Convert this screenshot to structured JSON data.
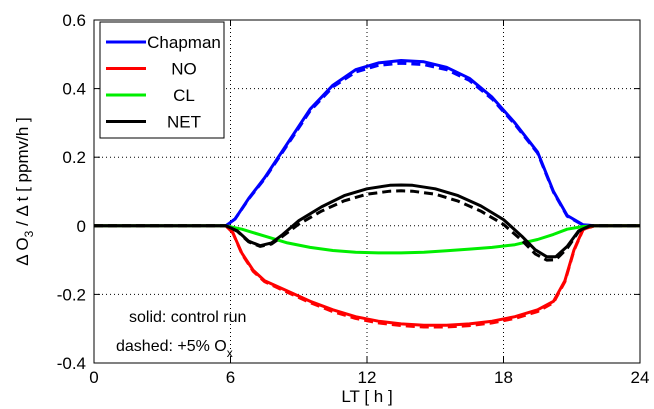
{
  "chart_data": {
    "type": "line",
    "xlabel": "LT [ h ]",
    "ylabel": {
      "delta1": "Δ",
      "o": "O",
      "sub": "3",
      "rest": " / Δ t   [ ppmv/h ]"
    },
    "xlim": [
      0,
      24
    ],
    "ylim": [
      -0.4,
      0.6
    ],
    "xticks": [
      "0",
      "6",
      "12",
      "18",
      "24"
    ],
    "yticks": [
      "-0.4",
      "-0.2",
      "0",
      "0.2",
      "0.4",
      "0.6"
    ],
    "grid": true,
    "legend_position": "top-left",
    "series": [
      {
        "name": "Chapman",
        "color": "#0000ff",
        "solid": [
          [
            0,
            0
          ],
          [
            5.8,
            0
          ],
          [
            6.2,
            0.02
          ],
          [
            6.8,
            0.08
          ],
          [
            7.5,
            0.14
          ],
          [
            8.5,
            0.24
          ],
          [
            9.5,
            0.34
          ],
          [
            10.5,
            0.41
          ],
          [
            11.5,
            0.455
          ],
          [
            12.5,
            0.475
          ],
          [
            13.5,
            0.482
          ],
          [
            14.5,
            0.478
          ],
          [
            15.5,
            0.462
          ],
          [
            16.5,
            0.43
          ],
          [
            17.5,
            0.375
          ],
          [
            18.5,
            0.3
          ],
          [
            19.5,
            0.215
          ],
          [
            20.2,
            0.1
          ],
          [
            20.8,
            0.03
          ],
          [
            21.5,
            0.003
          ],
          [
            22,
            0
          ],
          [
            24,
            0
          ]
        ],
        "dashed": [
          [
            0,
            0
          ],
          [
            5.8,
            0
          ],
          [
            6.2,
            0.02
          ],
          [
            6.8,
            0.078
          ],
          [
            7.5,
            0.137
          ],
          [
            8.5,
            0.236
          ],
          [
            9.5,
            0.335
          ],
          [
            10.5,
            0.405
          ],
          [
            11.5,
            0.448
          ],
          [
            12.5,
            0.468
          ],
          [
            13.5,
            0.474
          ],
          [
            14.5,
            0.47
          ],
          [
            15.5,
            0.455
          ],
          [
            16.5,
            0.424
          ],
          [
            17.5,
            0.37
          ],
          [
            18.5,
            0.296
          ],
          [
            19.5,
            0.212
          ],
          [
            20.2,
            0.098
          ],
          [
            20.8,
            0.028
          ],
          [
            21.5,
            0.002
          ],
          [
            22,
            0
          ],
          [
            24,
            0
          ]
        ]
      },
      {
        "name": "NO",
        "color": "#ff0000",
        "solid": [
          [
            0,
            0
          ],
          [
            5.8,
            0
          ],
          [
            6.1,
            -0.02
          ],
          [
            6.5,
            -0.08
          ],
          [
            7,
            -0.13
          ],
          [
            7.5,
            -0.16
          ],
          [
            8.5,
            -0.19
          ],
          [
            9.5,
            -0.22
          ],
          [
            10.5,
            -0.245
          ],
          [
            11.5,
            -0.265
          ],
          [
            12.5,
            -0.278
          ],
          [
            13.5,
            -0.286
          ],
          [
            14.5,
            -0.29
          ],
          [
            15.5,
            -0.29
          ],
          [
            16.5,
            -0.286
          ],
          [
            17.5,
            -0.278
          ],
          [
            18.5,
            -0.265
          ],
          [
            19.5,
            -0.245
          ],
          [
            20.2,
            -0.22
          ],
          [
            20.7,
            -0.16
          ],
          [
            21.1,
            -0.07
          ],
          [
            21.5,
            -0.01
          ],
          [
            22,
            0
          ],
          [
            24,
            0
          ]
        ],
        "dashed": [
          [
            0,
            0
          ],
          [
            5.8,
            0
          ],
          [
            6.1,
            -0.02
          ],
          [
            6.5,
            -0.082
          ],
          [
            7,
            -0.133
          ],
          [
            7.5,
            -0.163
          ],
          [
            8.5,
            -0.194
          ],
          [
            9.5,
            -0.224
          ],
          [
            10.5,
            -0.25
          ],
          [
            11.5,
            -0.27
          ],
          [
            12.5,
            -0.283
          ],
          [
            13.5,
            -0.291
          ],
          [
            14.5,
            -0.295
          ],
          [
            15.5,
            -0.295
          ],
          [
            16.5,
            -0.291
          ],
          [
            17.5,
            -0.283
          ],
          [
            18.5,
            -0.27
          ],
          [
            19.5,
            -0.25
          ],
          [
            20.2,
            -0.224
          ],
          [
            20.7,
            -0.163
          ],
          [
            21.1,
            -0.072
          ],
          [
            21.5,
            -0.011
          ],
          [
            22,
            0
          ],
          [
            24,
            0
          ]
        ]
      },
      {
        "name": "CL",
        "color": "#00ee00",
        "solid": [
          [
            0,
            0
          ],
          [
            5.8,
            0
          ],
          [
            6.5,
            -0.01
          ],
          [
            7.5,
            -0.03
          ],
          [
            8.5,
            -0.05
          ],
          [
            9.5,
            -0.063
          ],
          [
            10.5,
            -0.072
          ],
          [
            11.5,
            -0.077
          ],
          [
            12.5,
            -0.079
          ],
          [
            13.5,
            -0.079
          ],
          [
            14.5,
            -0.077
          ],
          [
            15.5,
            -0.073
          ],
          [
            16.5,
            -0.068
          ],
          [
            17.5,
            -0.063
          ],
          [
            18.5,
            -0.055
          ],
          [
            19.5,
            -0.04
          ],
          [
            20.2,
            -0.025
          ],
          [
            20.8,
            -0.01
          ],
          [
            21.5,
            -0.002
          ],
          [
            22,
            0
          ],
          [
            24,
            0
          ]
        ],
        "dashed": []
      },
      {
        "name": "NET",
        "color": "#000000",
        "solid": [
          [
            0,
            0
          ],
          [
            5.8,
            0
          ],
          [
            6.3,
            -0.015
          ],
          [
            6.8,
            -0.045
          ],
          [
            7.3,
            -0.058
          ],
          [
            7.8,
            -0.05
          ],
          [
            8.3,
            -0.025
          ],
          [
            9,
            0.015
          ],
          [
            10,
            0.055
          ],
          [
            11,
            0.088
          ],
          [
            12,
            0.108
          ],
          [
            13,
            0.118
          ],
          [
            13.5,
            0.119
          ],
          [
            14,
            0.118
          ],
          [
            15,
            0.108
          ],
          [
            16,
            0.088
          ],
          [
            17,
            0.058
          ],
          [
            18,
            0.018
          ],
          [
            18.8,
            -0.03
          ],
          [
            19.4,
            -0.07
          ],
          [
            19.9,
            -0.09
          ],
          [
            20.3,
            -0.09
          ],
          [
            20.8,
            -0.06
          ],
          [
            21.3,
            -0.015
          ],
          [
            21.8,
            0
          ],
          [
            24,
            0
          ]
        ],
        "dashed": [
          [
            0,
            0
          ],
          [
            5.8,
            0
          ],
          [
            6.3,
            -0.016
          ],
          [
            6.8,
            -0.047
          ],
          [
            7.3,
            -0.06
          ],
          [
            7.8,
            -0.053
          ],
          [
            8.3,
            -0.03
          ],
          [
            9,
            0.005
          ],
          [
            10,
            0.043
          ],
          [
            11,
            0.073
          ],
          [
            12,
            0.092
          ],
          [
            13,
            0.101
          ],
          [
            13.5,
            0.102
          ],
          [
            14,
            0.101
          ],
          [
            15,
            0.092
          ],
          [
            16,
            0.072
          ],
          [
            17,
            0.043
          ],
          [
            18,
            0.004
          ],
          [
            18.8,
            -0.042
          ],
          [
            19.4,
            -0.082
          ],
          [
            19.9,
            -0.1
          ],
          [
            20.3,
            -0.099
          ],
          [
            20.8,
            -0.066
          ],
          [
            21.3,
            -0.017
          ],
          [
            21.8,
            0
          ],
          [
            24,
            0
          ]
        ]
      }
    ],
    "annotations": {
      "solid_label": "solid: control run",
      "dashed_label": "dashed: +5% O",
      "dashed_sub": "x"
    }
  }
}
